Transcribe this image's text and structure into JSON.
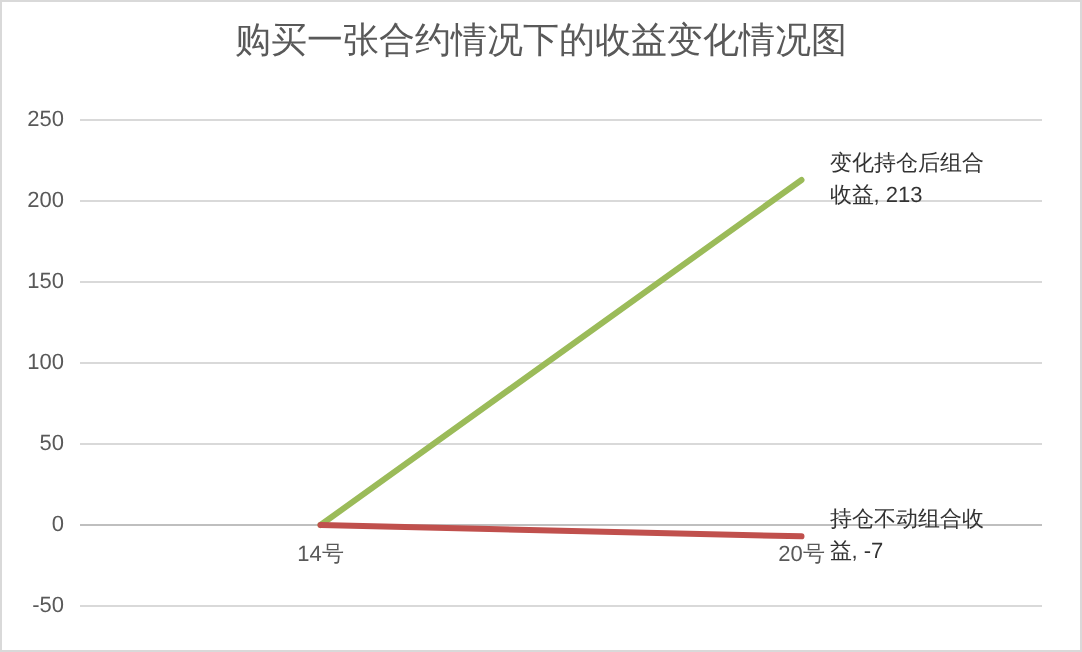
{
  "chart_data": {
    "type": "line",
    "title": "购买一张合约情况下的收益变化情况图",
    "categories": [
      "14号",
      "20号"
    ],
    "ylim": [
      -50,
      250
    ],
    "yticks": [
      -50,
      0,
      50,
      100,
      150,
      200,
      250
    ],
    "grid": "y",
    "marker": "none",
    "line_style": "solid",
    "series": [
      {
        "name": "变化持仓后组合收益",
        "color": "#9bbb59",
        "values": [
          0,
          213
        ],
        "value_labels": [
          null,
          ", 213"
        ]
      },
      {
        "name": "持仓不动组合收益",
        "color": "#c0504d",
        "values": [
          0,
          -7
        ],
        "value_labels": [
          null,
          ", -7"
        ]
      }
    ]
  }
}
